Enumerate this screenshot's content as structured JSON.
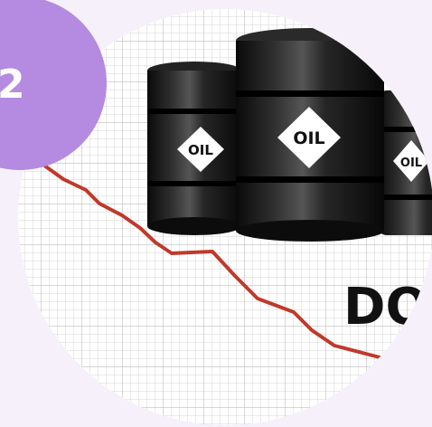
{
  "badge": {
    "number": "2",
    "color": "#b48be0"
  },
  "barrels": [
    {
      "label": "OIL"
    },
    {
      "label": "OIL"
    },
    {
      "label": "OIL"
    }
  ],
  "headline_fragment": "DO",
  "colors": {
    "background": "#f6f0fb",
    "grid_paper": "#ffffff",
    "grid_line": "#d8d8d8",
    "trend_line": "#c0392b",
    "barrel": "#151515"
  }
}
